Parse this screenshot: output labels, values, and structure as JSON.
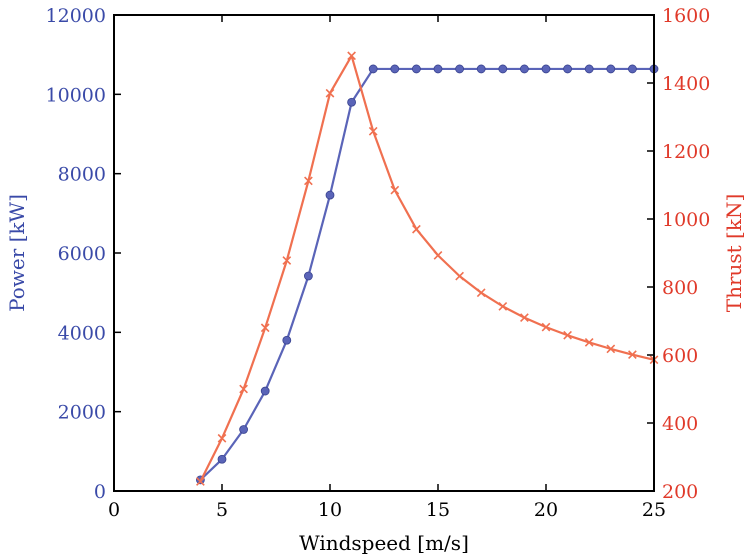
{
  "chart_data": {
    "type": "line",
    "xlabel": "Windspeed [m/s]",
    "ylabel_left": "Power [kW]",
    "ylabel_right": "Thrust [kN]",
    "xlim": [
      0,
      25
    ],
    "ylim_left": [
      0,
      12000
    ],
    "ylim_right": [
      200,
      1600
    ],
    "x_ticks": [
      "0",
      "5",
      "10",
      "15",
      "20",
      "25"
    ],
    "y_ticks_left": [
      "0",
      "2000",
      "4000",
      "6000",
      "8000",
      "10000",
      "12000"
    ],
    "y_ticks_right": [
      "200",
      "400",
      "600",
      "800",
      "1000",
      "1200",
      "1400",
      "1600"
    ],
    "grid": false,
    "series": [
      {
        "axis": "left",
        "marker": "circle",
        "color": "#5a64b8",
        "x": [
          4,
          5,
          6,
          7,
          8,
          9,
          10,
          11,
          12,
          13,
          14,
          15,
          16,
          17,
          18,
          19,
          20,
          21,
          22,
          23,
          24,
          25
        ],
        "values": [
          280,
          800,
          1550,
          2520,
          3800,
          5420,
          7460,
          9800,
          10640,
          10640,
          10640,
          10640,
          10640,
          10640,
          10640,
          10640,
          10640,
          10640,
          10640,
          10640,
          10640,
          10640
        ]
      },
      {
        "axis": "right",
        "marker": "x",
        "color": "#f07050",
        "x": [
          4,
          5,
          6,
          7,
          8,
          9,
          10,
          11,
          12,
          13,
          14,
          15,
          16,
          17,
          18,
          19,
          20,
          21,
          22,
          23,
          24,
          25
        ],
        "values": [
          228,
          355,
          500,
          680,
          878,
          1112,
          1370,
          1480,
          1258,
          1085,
          970,
          893,
          832,
          783,
          743,
          710,
          682,
          658,
          637,
          618,
          601,
          586
        ]
      }
    ],
    "colors": {
      "left_axis": "#3a4aa8",
      "right_axis": "#e03a2a",
      "frame": "#000000"
    }
  }
}
